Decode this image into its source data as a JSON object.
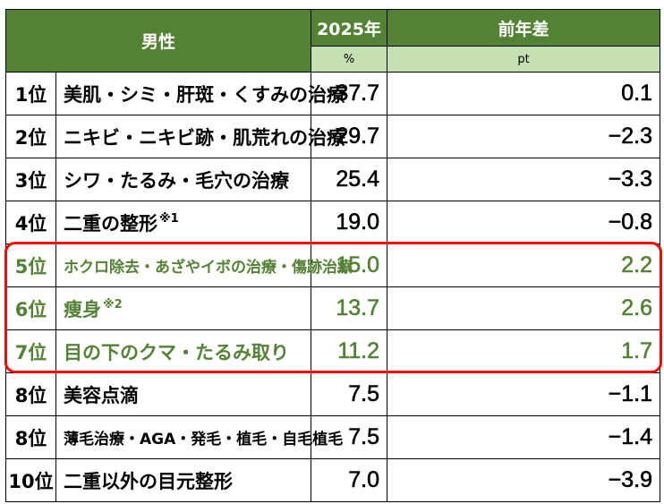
{
  "header": {
    "title": "男性",
    "year_col": "2025年",
    "diff_col": "前年差",
    "year_unit": "%",
    "diff_unit": "pt"
  },
  "rows": [
    {
      "rank": "1位",
      "item": "美肌・シミ・肝斑・くすみの治療",
      "note": "",
      "value": "37.7",
      "diff": "0.1"
    },
    {
      "rank": "2位",
      "item": "ニキビ・ニキビ跡・肌荒れの治療",
      "note": "",
      "value": "29.7",
      "diff": "−2.3"
    },
    {
      "rank": "3位",
      "item": "シワ・たるみ・毛穴の治療",
      "note": "",
      "value": "25.4",
      "diff": "−3.3"
    },
    {
      "rank": "4位",
      "item": "二重の整形",
      "note": "※1",
      "value": "19.0",
      "diff": "−0.8"
    },
    {
      "rank": "5位",
      "item": "ホクロ除去・あざやイボの治療・傷跡治療",
      "note": "",
      "value": "15.0",
      "diff": "2.2"
    },
    {
      "rank": "6位",
      "item": "痩身",
      "note": "※2",
      "value": "13.7",
      "diff": "2.6"
    },
    {
      "rank": "7位",
      "item": "目の下のクマ・たるみ取り",
      "note": "",
      "value": "11.2",
      "diff": "1.7"
    },
    {
      "rank": "8位",
      "item": "美容点滴",
      "note": "",
      "value": "7.5",
      "diff": "−1.1"
    },
    {
      "rank": "8位",
      "item": "薄毛治療・AGA・発毛・植毛・自毛植毛",
      "note": "",
      "value": "7.5",
      "diff": "−1.4"
    },
    {
      "rank": "10位",
      "item": "二重以外の目元整形",
      "note": "",
      "value": "7.0",
      "diff": "−3.9"
    }
  ],
  "colors": {
    "header": "#548235",
    "subheader": "#c6e0b4",
    "highlight_text": "#548235",
    "highlight_box": "#ff0000"
  }
}
